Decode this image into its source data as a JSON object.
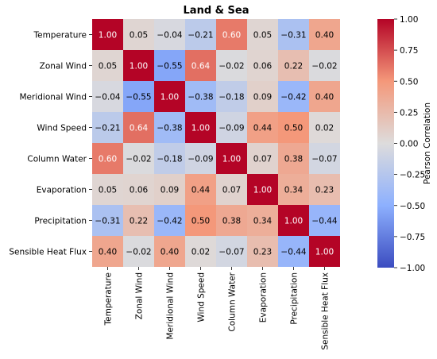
{
  "chart_data": {
    "type": "heatmap",
    "title": "Land & Sea",
    "variables": [
      "Temperature",
      "Zonal Wind",
      "Meridional Wind",
      "Wind Speed",
      "Column Water",
      "Evaporation",
      "Precipitation",
      "Sensible Heat Flux"
    ],
    "matrix": [
      [
        1.0,
        0.05,
        -0.04,
        -0.21,
        0.6,
        0.05,
        -0.31,
        0.4
      ],
      [
        0.05,
        1.0,
        -0.55,
        0.64,
        -0.02,
        0.06,
        0.22,
        -0.02
      ],
      [
        -0.04,
        -0.55,
        1.0,
        -0.38,
        -0.18,
        0.09,
        -0.42,
        0.4
      ],
      [
        -0.21,
        0.64,
        -0.38,
        1.0,
        -0.09,
        0.44,
        0.5,
        0.02
      ],
      [
        0.6,
        -0.02,
        -0.18,
        -0.09,
        1.0,
        0.07,
        0.38,
        -0.07
      ],
      [
        0.05,
        0.06,
        0.09,
        0.44,
        0.07,
        1.0,
        0.34,
        0.23
      ],
      [
        -0.31,
        0.22,
        -0.42,
        0.5,
        0.38,
        0.34,
        1.0,
        -0.44
      ],
      [
        0.4,
        -0.02,
        0.4,
        0.02,
        -0.07,
        0.23,
        -0.44,
        1.0
      ]
    ],
    "cell_labels": [
      [
        "1.00",
        "0.05",
        "−0.04",
        "−0.21",
        "0.60",
        "0.05",
        "−0.31",
        "0.40"
      ],
      [
        "0.05",
        "1.00",
        "−0.55",
        "0.64",
        "−0.02",
        "0.06",
        "0.22",
        "−0.02"
      ],
      [
        "−0.04",
        "−0.55",
        "1.00",
        "−0.38",
        "−0.18",
        "0.09",
        "−0.42",
        "0.40"
      ],
      [
        "−0.21",
        "0.64",
        "−0.38",
        "1.00",
        "−0.09",
        "0.44",
        "0.50",
        "0.02"
      ],
      [
        "0.60",
        "−0.02",
        "−0.18",
        "−0.09",
        "1.00",
        "0.07",
        "0.38",
        "−0.07"
      ],
      [
        "0.05",
        "0.06",
        "0.09",
        "0.44",
        "0.07",
        "1.00",
        "0.34",
        "0.23"
      ],
      [
        "−0.31",
        "0.22",
        "−0.42",
        "0.50",
        "0.38",
        "0.34",
        "1.00",
        "−0.44"
      ],
      [
        "0.40",
        "−0.02",
        "0.40",
        "0.02",
        "−0.07",
        "0.23",
        "−0.44",
        "1.00"
      ]
    ],
    "colormap": "coolwarm",
    "vmin": -1.0,
    "vmax": 1.0,
    "colorbar": {
      "label": "Pearson Correlation",
      "ticks": [
        1.0,
        0.75,
        0.5,
        0.25,
        0.0,
        -0.25,
        -0.5,
        -0.75,
        -1.0
      ],
      "tick_labels": [
        "1.00",
        "0.75",
        "0.50",
        "0.25",
        "0.00",
        "−0.25",
        "−0.50",
        "−0.75",
        "−1.00"
      ],
      "placement": "right"
    },
    "colors": {
      "min": "#3b4cc0",
      "mid": "#dddcdc",
      "max": "#b40426"
    }
  }
}
